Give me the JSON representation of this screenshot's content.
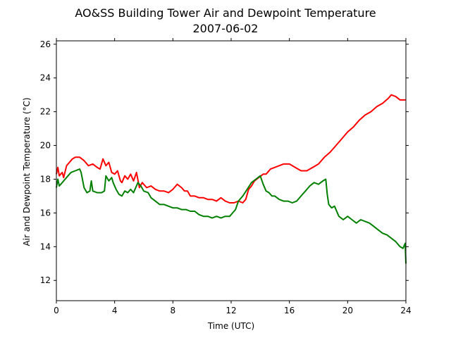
{
  "chart_data": {
    "type": "line",
    "title": "AO&SS Building Tower Air and Dewpoint Temperature",
    "subtitle": "2007-06-02",
    "xlabel": "Time (UTC)",
    "ylabel": "Air and Dewpoint Temperature (°C)",
    "xlim": [
      0,
      24
    ],
    "ylim": [
      10.8,
      26.2
    ],
    "xticks": [
      0,
      4,
      8,
      12,
      16,
      20,
      24
    ],
    "yticks": [
      12,
      14,
      16,
      18,
      20,
      22,
      24,
      26
    ],
    "grid": false,
    "series": [
      {
        "color": "#ff0000",
        "x": [
          0,
          0.1,
          0.2,
          0.4,
          0.5,
          0.7,
          0.9,
          1.1,
          1.3,
          1.6,
          1.9,
          2.2,
          2.5,
          2.8,
          3.0,
          3.2,
          3.4,
          3.6,
          3.8,
          4.0,
          4.2,
          4.4,
          4.5,
          4.7,
          4.9,
          5.1,
          5.3,
          5.5,
          5.7,
          5.9,
          6.2,
          6.5,
          6.8,
          7.1,
          7.4,
          7.7,
          8.0,
          8.3,
          8.6,
          8.8,
          9.0,
          9.2,
          9.5,
          9.8,
          10.1,
          10.4,
          10.7,
          11.0,
          11.3,
          11.6,
          11.9,
          12.2,
          12.5,
          12.8,
          13.0,
          13.2,
          13.4,
          13.6,
          13.9,
          14.2,
          14.4,
          14.7,
          15.0,
          15.3,
          15.6,
          16.0,
          16.4,
          16.8,
          17.2,
          17.6,
          18.0,
          18.4,
          18.8,
          19.2,
          19.6,
          20.0,
          20.4,
          20.8,
          21.2,
          21.6,
          22.0,
          22.4,
          22.8,
          23.0,
          23.3,
          23.6,
          24.0
        ],
        "y": [
          18.3,
          18.7,
          18.2,
          18.4,
          18.1,
          18.8,
          19.0,
          19.2,
          19.3,
          19.3,
          19.1,
          18.8,
          18.9,
          18.7,
          18.6,
          19.2,
          18.8,
          19.0,
          18.4,
          18.3,
          18.5,
          17.9,
          17.8,
          18.2,
          18.0,
          18.3,
          17.9,
          18.4,
          17.5,
          17.8,
          17.5,
          17.6,
          17.4,
          17.3,
          17.3,
          17.2,
          17.4,
          17.7,
          17.5,
          17.3,
          17.3,
          17.0,
          17.0,
          16.9,
          16.9,
          16.8,
          16.8,
          16.7,
          16.9,
          16.7,
          16.6,
          16.6,
          16.7,
          16.6,
          16.8,
          17.4,
          17.6,
          17.9,
          18.1,
          18.3,
          18.3,
          18.6,
          18.7,
          18.8,
          18.9,
          18.9,
          18.7,
          18.5,
          18.5,
          18.7,
          18.9,
          19.3,
          19.6,
          20.0,
          20.4,
          20.8,
          21.1,
          21.5,
          21.8,
          22.0,
          22.3,
          22.5,
          22.8,
          23.0,
          22.9,
          22.7,
          22.7
        ]
      },
      {
        "color": "#008000",
        "x": [
          0,
          0.1,
          0.2,
          0.4,
          0.6,
          0.8,
          1.0,
          1.3,
          1.6,
          1.7,
          1.9,
          2.1,
          2.3,
          2.4,
          2.5,
          2.8,
          3.1,
          3.3,
          3.4,
          3.6,
          3.8,
          3.9,
          4.1,
          4.3,
          4.5,
          4.7,
          4.9,
          5.1,
          5.3,
          5.6,
          5.8,
          6.0,
          6.3,
          6.5,
          6.8,
          7.1,
          7.4,
          7.7,
          8.0,
          8.3,
          8.6,
          8.9,
          9.2,
          9.5,
          9.8,
          10.1,
          10.4,
          10.7,
          11.0,
          11.3,
          11.6,
          11.9,
          12.1,
          12.3,
          12.5,
          12.8,
          13.1,
          13.4,
          13.7,
          14.0,
          14.2,
          14.4,
          14.6,
          14.8,
          15.0,
          15.3,
          15.6,
          15.9,
          16.2,
          16.5,
          16.8,
          17.1,
          17.4,
          17.7,
          18.0,
          18.3,
          18.5,
          18.6,
          18.7,
          18.9,
          19.1,
          19.4,
          19.7,
          20.0,
          20.3,
          20.6,
          20.9,
          21.2,
          21.5,
          21.8,
          22.1,
          22.4,
          22.7,
          23.0,
          23.3,
          23.6,
          23.8,
          23.95,
          24.0
        ],
        "y": [
          17.5,
          18.0,
          17.6,
          17.8,
          18.0,
          18.2,
          18.4,
          18.5,
          18.6,
          18.4,
          17.5,
          17.2,
          17.3,
          17.9,
          17.3,
          17.2,
          17.2,
          17.3,
          18.2,
          17.9,
          18.1,
          17.8,
          17.4,
          17.1,
          17.0,
          17.3,
          17.2,
          17.4,
          17.2,
          17.8,
          17.6,
          17.3,
          17.2,
          16.9,
          16.7,
          16.5,
          16.5,
          16.4,
          16.3,
          16.3,
          16.2,
          16.2,
          16.1,
          16.1,
          15.9,
          15.8,
          15.8,
          15.7,
          15.8,
          15.7,
          15.8,
          15.8,
          16.0,
          16.2,
          16.7,
          17.0,
          17.4,
          17.8,
          18.0,
          18.2,
          17.7,
          17.3,
          17.2,
          17.0,
          17.0,
          16.8,
          16.7,
          16.7,
          16.6,
          16.7,
          17.0,
          17.3,
          17.6,
          17.8,
          17.7,
          17.9,
          18.0,
          17.1,
          16.5,
          16.3,
          16.4,
          15.8,
          15.6,
          15.8,
          15.6,
          15.4,
          15.6,
          15.5,
          15.4,
          15.2,
          15.0,
          14.8,
          14.7,
          14.5,
          14.3,
          14.0,
          13.9,
          14.2,
          13.0
        ]
      }
    ]
  }
}
